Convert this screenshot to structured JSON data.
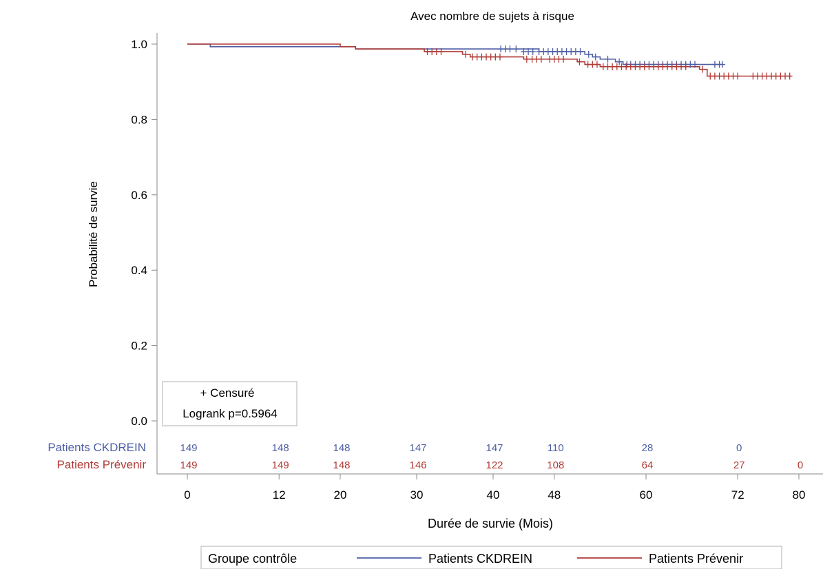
{
  "chart_data": {
    "type": "line",
    "title": "Avec nombre de sujets à risque",
    "xlabel": "Durée de survie (Mois)",
    "ylabel": "Probabilité de survie",
    "xlim": [
      -3,
      83
    ],
    "ylim": [
      0,
      1.0
    ],
    "x_ticks": [
      0,
      12,
      20,
      30,
      40,
      48,
      60,
      72,
      80
    ],
    "y_ticks": [
      0.0,
      0.2,
      0.4,
      0.6,
      0.8,
      1.0
    ],
    "y_tick_labels": [
      "0.0",
      "0.2",
      "0.4",
      "0.6",
      "0.8",
      "1.0"
    ],
    "inset": {
      "censor_label": "+ Censuré",
      "logrank_label": "Logrank p=0.5964"
    },
    "legend": {
      "title": "Groupe contrôle",
      "placement": "bottom"
    },
    "risk_table": {
      "times": [
        0,
        12,
        20,
        30,
        40,
        48,
        60,
        72,
        80
      ]
    },
    "series": [
      {
        "name": "Patients CKDREIN",
        "color": "#4d5ea4",
        "steps": [
          [
            0,
            1.0
          ],
          [
            3,
            0.993
          ],
          [
            22,
            0.987
          ],
          [
            41,
            0.987
          ],
          [
            46,
            0.98
          ],
          [
            52,
            0.973
          ],
          [
            53,
            0.966
          ],
          [
            54,
            0.96
          ],
          [
            56,
            0.953
          ],
          [
            57,
            0.946
          ],
          [
            70,
            0.946
          ]
        ],
        "censored": [
          [
            41,
            0.987
          ],
          [
            41.6,
            0.987
          ],
          [
            42.2,
            0.987
          ],
          [
            43,
            0.987
          ],
          [
            44,
            0.98
          ],
          [
            44.6,
            0.98
          ],
          [
            45.2,
            0.98
          ],
          [
            46,
            0.98
          ],
          [
            46.6,
            0.98
          ],
          [
            47.2,
            0.98
          ],
          [
            47.8,
            0.98
          ],
          [
            48.4,
            0.98
          ],
          [
            49,
            0.98
          ],
          [
            49.6,
            0.98
          ],
          [
            50.2,
            0.98
          ],
          [
            50.8,
            0.98
          ],
          [
            51.4,
            0.98
          ],
          [
            52.5,
            0.973
          ],
          [
            53.4,
            0.966
          ],
          [
            55,
            0.96
          ],
          [
            56.5,
            0.953
          ],
          [
            57.5,
            0.946
          ],
          [
            58,
            0.946
          ],
          [
            58.6,
            0.946
          ],
          [
            59.2,
            0.946
          ],
          [
            59.8,
            0.946
          ],
          [
            60.4,
            0.946
          ],
          [
            61,
            0.946
          ],
          [
            61.6,
            0.946
          ],
          [
            62.2,
            0.946
          ],
          [
            62.8,
            0.946
          ],
          [
            63.4,
            0.946
          ],
          [
            64,
            0.946
          ],
          [
            64.6,
            0.946
          ],
          [
            65.2,
            0.946
          ],
          [
            65.8,
            0.946
          ],
          [
            66.4,
            0.946
          ],
          [
            69,
            0.946
          ],
          [
            69.6,
            0.946
          ],
          [
            70,
            0.946
          ]
        ],
        "at_risk": [
          "149",
          "148",
          "148",
          "147",
          "147",
          "110",
          "28",
          "0",
          ""
        ]
      },
      {
        "name": "Patients Prévenir",
        "color": "#b03a36",
        "steps": [
          [
            0,
            1.0
          ],
          [
            20,
            0.993
          ],
          [
            22,
            0.987
          ],
          [
            31,
            0.98
          ],
          [
            36,
            0.973
          ],
          [
            37,
            0.966
          ],
          [
            44,
            0.96
          ],
          [
            51,
            0.953
          ],
          [
            52,
            0.946
          ],
          [
            54,
            0.94
          ],
          [
            67,
            0.933
          ],
          [
            68,
            0.915
          ],
          [
            79,
            0.915
          ]
        ],
        "censored": [
          [
            31.4,
            0.98
          ],
          [
            32,
            0.98
          ],
          [
            32.6,
            0.98
          ],
          [
            33.2,
            0.98
          ],
          [
            36.4,
            0.973
          ],
          [
            37.3,
            0.966
          ],
          [
            37.9,
            0.966
          ],
          [
            38.5,
            0.966
          ],
          [
            39.1,
            0.966
          ],
          [
            39.7,
            0.966
          ],
          [
            40.3,
            0.966
          ],
          [
            40.9,
            0.966
          ],
          [
            44.4,
            0.96
          ],
          [
            45.1,
            0.96
          ],
          [
            45.7,
            0.96
          ],
          [
            46.3,
            0.96
          ],
          [
            47.4,
            0.96
          ],
          [
            48,
            0.96
          ],
          [
            48.6,
            0.96
          ],
          [
            49.2,
            0.96
          ],
          [
            51.3,
            0.953
          ],
          [
            52.4,
            0.946
          ],
          [
            53,
            0.946
          ],
          [
            53.6,
            0.946
          ],
          [
            54.4,
            0.94
          ],
          [
            55,
            0.94
          ],
          [
            55.6,
            0.94
          ],
          [
            56.2,
            0.94
          ],
          [
            56.8,
            0.94
          ],
          [
            57.4,
            0.94
          ],
          [
            58,
            0.94
          ],
          [
            58.6,
            0.94
          ],
          [
            59.2,
            0.94
          ],
          [
            59.8,
            0.94
          ],
          [
            60.4,
            0.94
          ],
          [
            61,
            0.94
          ],
          [
            61.6,
            0.94
          ],
          [
            62.2,
            0.94
          ],
          [
            62.8,
            0.94
          ],
          [
            63.4,
            0.94
          ],
          [
            64,
            0.94
          ],
          [
            64.6,
            0.94
          ],
          [
            65.2,
            0.94
          ],
          [
            67.4,
            0.933
          ],
          [
            68.4,
            0.915
          ],
          [
            69,
            0.915
          ],
          [
            69.6,
            0.915
          ],
          [
            70.2,
            0.915
          ],
          [
            70.8,
            0.915
          ],
          [
            71.4,
            0.915
          ],
          [
            72,
            0.915
          ],
          [
            74,
            0.915
          ],
          [
            74.6,
            0.915
          ],
          [
            75.2,
            0.915
          ],
          [
            75.8,
            0.915
          ],
          [
            76.4,
            0.915
          ],
          [
            77,
            0.915
          ],
          [
            77.6,
            0.915
          ],
          [
            78.2,
            0.915
          ],
          [
            78.8,
            0.915
          ]
        ],
        "at_risk": [
          "149",
          "149",
          "148",
          "146",
          "122",
          "108",
          "64",
          "27",
          "0"
        ]
      }
    ]
  }
}
